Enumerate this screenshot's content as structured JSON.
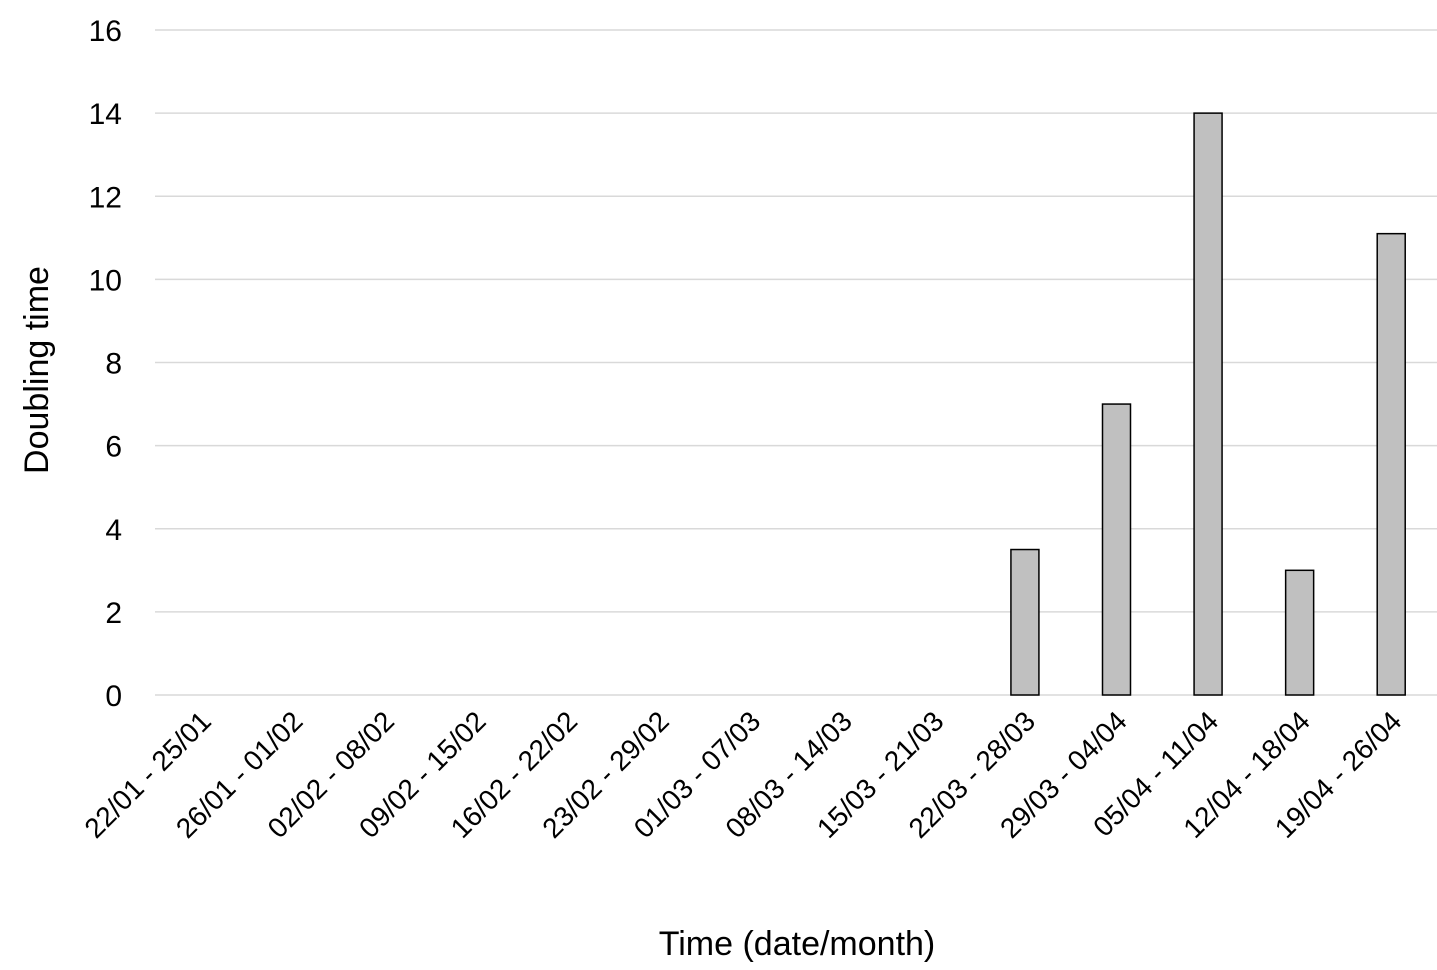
{
  "chart_data": {
    "type": "bar",
    "xlabel": "Time  (date/month)",
    "ylabel": "Doubling  time",
    "ylim": [
      0,
      16
    ],
    "yticks": [
      0,
      2,
      4,
      6,
      8,
      10,
      12,
      14,
      16
    ],
    "grid": true,
    "categories": [
      "22/01 - 25/01",
      "26/01 - 01/02",
      "02/02 - 08/02",
      "09/02 - 15/02",
      "16/02 - 22/02",
      "23/02 - 29/02",
      "01/03 - 07/03",
      "08/03 - 14/03",
      "15/03 - 21/03",
      "22/03 - 28/03",
      "29/03 - 04/04",
      "05/04 - 11/04",
      "12/04 - 18/04",
      "19/04 - 26/04"
    ],
    "values": [
      0,
      0,
      0,
      0,
      0,
      0,
      0,
      0,
      0,
      3.5,
      7,
      14,
      3,
      11.1
    ],
    "colors": {
      "bar": "#c0c0c0",
      "bar_edge": "#000000",
      "grid": "#d9d9d9"
    }
  }
}
